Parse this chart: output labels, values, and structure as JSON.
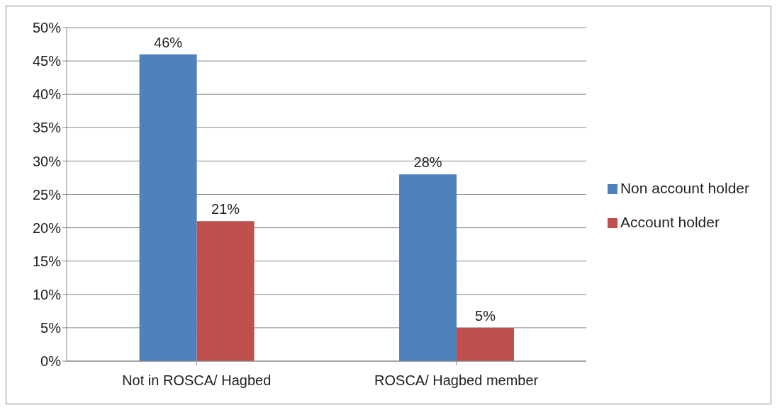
{
  "chart_data": {
    "type": "bar",
    "categories": [
      "Not in ROSCA/ Hagbed",
      "ROSCA/ Hagbed member"
    ],
    "series": [
      {
        "name": "Non account holder",
        "color": "#4f81bd",
        "values": [
          46,
          28
        ],
        "value_labels": [
          "46%",
          "28%"
        ]
      },
      {
        "name": "Account holder",
        "color": "#c0504d",
        "values": [
          21,
          5
        ],
        "value_labels": [
          "21%",
          "5%"
        ]
      }
    ],
    "ylim": [
      0,
      50
    ],
    "yticks": [
      {
        "value": 0,
        "label": "0%"
      },
      {
        "value": 5,
        "label": "5%"
      },
      {
        "value": 10,
        "label": "10%"
      },
      {
        "value": 15,
        "label": "15%"
      },
      {
        "value": 20,
        "label": "20%"
      },
      {
        "value": 25,
        "label": "25%"
      },
      {
        "value": 30,
        "label": "30%"
      },
      {
        "value": 35,
        "label": "35%"
      },
      {
        "value": 40,
        "label": "40%"
      },
      {
        "value": 45,
        "label": "45%"
      },
      {
        "value": 50,
        "label": "50%"
      }
    ],
    "grid": "y",
    "legend": "right"
  }
}
